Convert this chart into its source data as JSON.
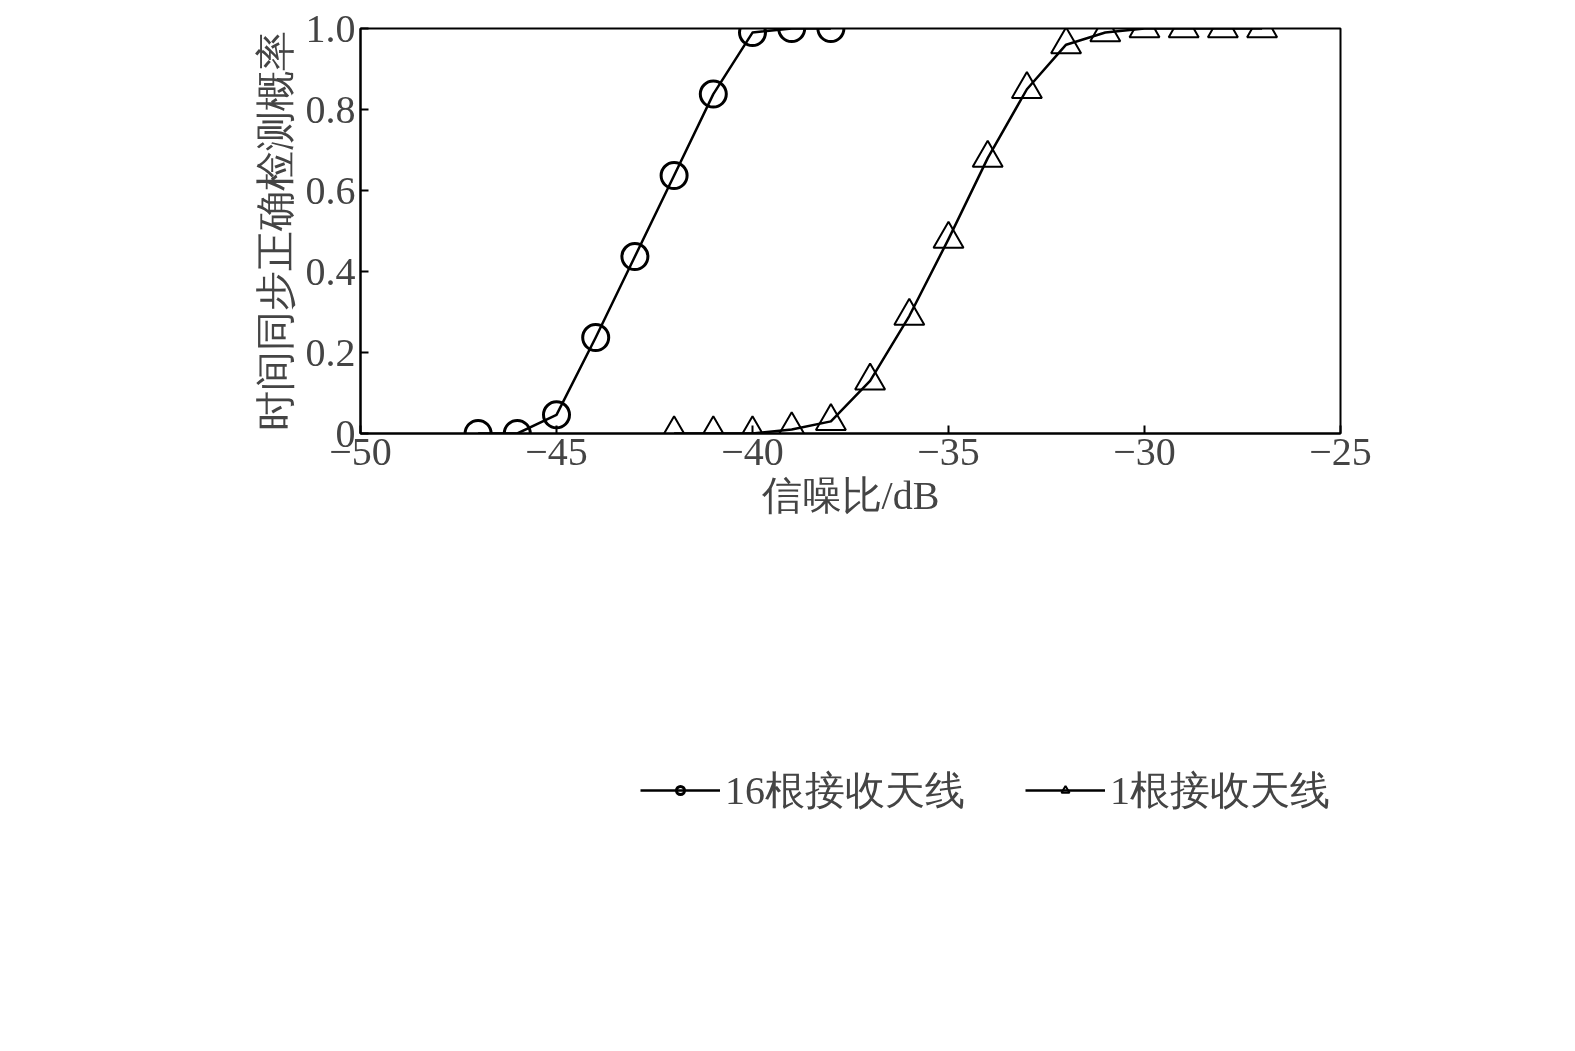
{
  "chart_data": {
    "type": "line",
    "xlabel": "信噪比/dB",
    "ylabel": "时间同步正确检测概率",
    "xlim": [
      -50,
      -25
    ],
    "ylim": [
      0,
      1.0
    ],
    "xticks": [
      {
        "value": -50,
        "label": "−50"
      },
      {
        "value": -45,
        "label": "−45"
      },
      {
        "value": -40,
        "label": "−40"
      },
      {
        "value": -35,
        "label": "−35"
      },
      {
        "value": -30,
        "label": "−30"
      },
      {
        "value": -25,
        "label": "−25"
      }
    ],
    "yticks": [
      0,
      0.2,
      0.4,
      0.6,
      0.8,
      {
        "value": 1.0,
        "label": "1.0"
      }
    ],
    "grid": false,
    "legend": "bottom",
    "line_style": "solid",
    "series": [
      {
        "name": "16根接收天线",
        "color": "#000000",
        "marker": "circle",
        "x": [
          -47,
          -46,
          -45,
          -44,
          -43,
          -42,
          -41,
          -40,
          -39,
          -38
        ],
        "values": [
          0,
          0,
          0.046,
          0.237,
          0.437,
          0.637,
          0.838,
          0.99,
          1.0,
          1.0
        ]
      },
      {
        "name": "1根接收天线",
        "color": "#000000",
        "marker": "triangle",
        "x": [
          -42,
          -41,
          -40,
          -39,
          -38,
          -37,
          -36,
          -35,
          -34,
          -33,
          -32,
          -31,
          -30,
          -29,
          -28,
          -27
        ],
        "values": [
          0,
          0,
          0,
          0.01,
          0.03,
          0.13,
          0.29,
          0.48,
          0.68,
          0.85,
          0.96,
          0.99,
          1.0,
          1.0,
          1.0,
          1.0
        ]
      }
    ]
  }
}
